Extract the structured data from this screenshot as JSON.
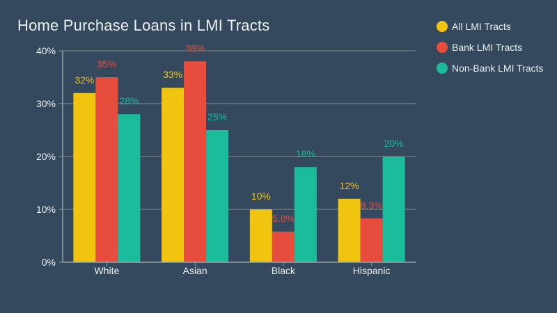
{
  "chart_data": {
    "type": "bar",
    "title": "Home Purchase Loans in LMI Tracts",
    "xlabel": "",
    "ylabel": "",
    "categories": [
      "White",
      "Asian",
      "Black",
      "Hispanic"
    ],
    "series": [
      {
        "name": "All LMI Tracts",
        "color": "#f1c40f",
        "values": [
          32,
          33,
          10,
          12
        ],
        "labels": [
          "32%",
          "33%",
          "10%",
          "12%"
        ]
      },
      {
        "name": "Bank LMI Tracts",
        "color": "#e74c3c",
        "values": [
          35,
          38,
          5.8,
          8.3
        ],
        "labels": [
          "35%",
          "38%",
          "5.8%",
          "8.3%"
        ]
      },
      {
        "name": "Non-Bank LMI Tracts",
        "color": "#1abc9c",
        "values": [
          28,
          25,
          18,
          20
        ],
        "labels": [
          "28%",
          "25%",
          "18%",
          "20%"
        ]
      }
    ],
    "ylim": [
      0,
      40
    ],
    "yticks": [
      0,
      10,
      20,
      30,
      40
    ],
    "ytick_labels": [
      "0%",
      "10%",
      "20%",
      "30%",
      "40%"
    ],
    "grid": true,
    "legend_position": "top-right"
  },
  "colors": {
    "background": "#34495e",
    "text": "#ecf0f1",
    "grid": "#7f8c8d",
    "axis": "#95a5a6"
  }
}
